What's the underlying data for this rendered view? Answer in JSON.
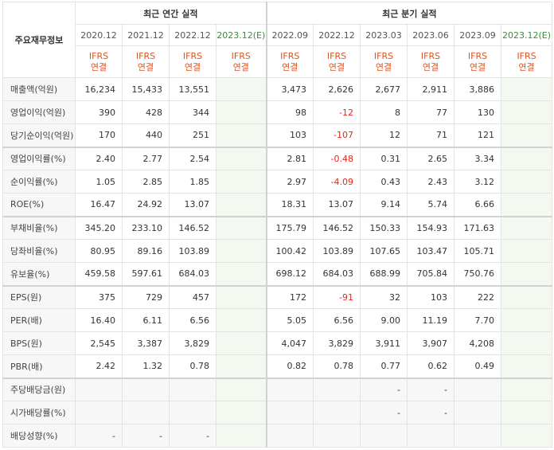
{
  "header": {
    "corner_label": "주요재무정보",
    "annual_group": "최근 연간 실적",
    "quarter_group": "최근 분기 실적",
    "annual_periods": [
      "2020.12",
      "2021.12",
      "2022.12",
      "2023.12(E)"
    ],
    "quarter_periods": [
      "2022.09",
      "2022.12",
      "2023.03",
      "2023.06",
      "2023.09",
      "2023.12(E)"
    ],
    "ifrs_top": "IFRS",
    "ifrs_bottom": "연결"
  },
  "rows": [
    {
      "label": "매출액(억원)",
      "annual": [
        "16,234",
        "15,433",
        "13,551",
        ""
      ],
      "quarter": [
        "3,473",
        "2,626",
        "2,677",
        "2,911",
        "3,886",
        ""
      ]
    },
    {
      "label": "영업이익(억원)",
      "annual": [
        "390",
        "428",
        "344",
        ""
      ],
      "quarter": [
        "98",
        "-12",
        "8",
        "77",
        "130",
        ""
      ]
    },
    {
      "label": "당기순이익(억원)",
      "annual": [
        "170",
        "440",
        "251",
        ""
      ],
      "quarter": [
        "103",
        "-107",
        "12",
        "71",
        "121",
        ""
      ]
    },
    {
      "label": "영업이익률(%)",
      "annual": [
        "2.40",
        "2.77",
        "2.54",
        ""
      ],
      "quarter": [
        "2.81",
        "-0.48",
        "0.31",
        "2.65",
        "3.34",
        ""
      ]
    },
    {
      "label": "순이익률(%)",
      "annual": [
        "1.05",
        "2.85",
        "1.85",
        ""
      ],
      "quarter": [
        "2.97",
        "-4.09",
        "0.43",
        "2.43",
        "3.12",
        ""
      ]
    },
    {
      "label": "ROE(%)",
      "annual": [
        "16.47",
        "24.92",
        "13.07",
        ""
      ],
      "quarter": [
        "18.31",
        "13.07",
        "9.14",
        "5.74",
        "6.66",
        ""
      ]
    },
    {
      "label": "부채비율(%)",
      "annual": [
        "345.20",
        "233.10",
        "146.52",
        ""
      ],
      "quarter": [
        "175.79",
        "146.52",
        "150.33",
        "154.93",
        "171.63",
        ""
      ]
    },
    {
      "label": "당좌비율(%)",
      "annual": [
        "80.95",
        "89.16",
        "103.89",
        ""
      ],
      "quarter": [
        "100.42",
        "103.89",
        "107.65",
        "103.47",
        "105.71",
        ""
      ]
    },
    {
      "label": "유보율(%)",
      "annual": [
        "459.58",
        "597.61",
        "684.03",
        ""
      ],
      "quarter": [
        "698.12",
        "684.03",
        "688.99",
        "705.84",
        "750.76",
        ""
      ]
    },
    {
      "label": "EPS(원)",
      "annual": [
        "375",
        "729",
        "457",
        ""
      ],
      "quarter": [
        "172",
        "-91",
        "32",
        "103",
        "222",
        ""
      ]
    },
    {
      "label": "PER(배)",
      "annual": [
        "16.40",
        "6.11",
        "6.56",
        ""
      ],
      "quarter": [
        "5.05",
        "6.56",
        "9.00",
        "11.19",
        "7.70",
        ""
      ]
    },
    {
      "label": "BPS(원)",
      "annual": [
        "2,545",
        "3,387",
        "3,829",
        ""
      ],
      "quarter": [
        "4,047",
        "3,829",
        "3,911",
        "3,907",
        "4,208",
        ""
      ]
    },
    {
      "label": "PBR(배)",
      "annual": [
        "2.42",
        "1.32",
        "0.78",
        ""
      ],
      "quarter": [
        "0.82",
        "0.78",
        "0.77",
        "0.62",
        "0.49",
        ""
      ]
    },
    {
      "label": "주당배당금(원)",
      "annual": [
        "",
        "",
        "",
        ""
      ],
      "quarter": [
        "",
        "",
        "-",
        "-",
        "",
        ""
      ]
    },
    {
      "label": "시가배당률(%)",
      "annual": [
        "",
        "",
        "",
        ""
      ],
      "quarter": [
        "",
        "",
        "-",
        "-",
        "",
        ""
      ]
    },
    {
      "label": "배당성향(%)",
      "annual": [
        "-",
        "-",
        "-",
        ""
      ],
      "quarter": [
        "",
        "",
        "",
        "",
        "",
        ""
      ]
    }
  ],
  "colors": {
    "negative": "#e5261d",
    "ifrs": "#e0531f",
    "estimate_bg": "#f3f9f0",
    "estimate_text": "#3b8c3b"
  }
}
